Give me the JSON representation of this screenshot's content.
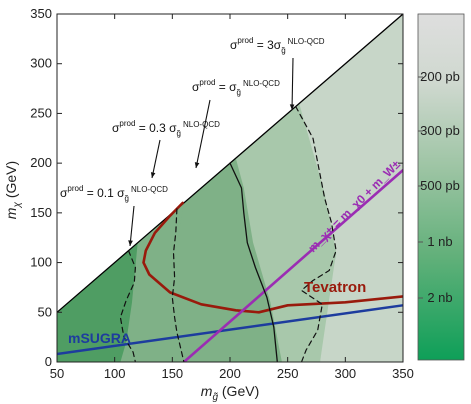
{
  "chart_data": {
    "type": "contour",
    "title": "",
    "xlabel": "m_g̃ (GeV)",
    "ylabel": "m_χ (GeV)",
    "xlim": [
      50,
      350
    ],
    "ylim": [
      0,
      350
    ],
    "x_ticks": [
      50,
      100,
      150,
      200,
      250,
      300,
      350
    ],
    "y_ticks": [
      0,
      50,
      100,
      150,
      200,
      250,
      300,
      350
    ],
    "colorbar": {
      "labels": [
        "200 pb",
        "300 pb",
        "500 pb",
        "1 nb",
        "2 nb"
      ],
      "colors": {
        "low": "#e0e0e0",
        "high": "#11a05a"
      }
    },
    "colors": {
      "kinematic_line": "#000000",
      "tevatron": "#991a0c",
      "msugra": "#1d3c9e",
      "w_line": "#9b2db3",
      "dark_green": "#4f9d63",
      "mid_green": "#7fb187",
      "light_green": "#a8c8ab",
      "pale": "#c7d6c8"
    },
    "series": [
      {
        "name": "m_χ = m_g̃",
        "type": "kinematic_boundary",
        "x": [
          50,
          350
        ],
        "y": [
          50,
          350
        ]
      },
      {
        "name": "Tevatron",
        "x": [
          159,
          148,
          135,
          127,
          125,
          130,
          148,
          175,
          205,
          225,
          250,
          300,
          350
        ],
        "y": [
          160,
          147,
          130,
          112,
          100,
          88,
          70,
          58,
          52,
          50,
          57,
          60,
          66
        ]
      },
      {
        "name": "mSUGRA",
        "x": [
          50,
          350
        ],
        "y": [
          8,
          57
        ]
      },
      {
        "name": "m_χ± = m_χ0 + m_W±",
        "x": [
          160,
          350
        ],
        "y": [
          0,
          193
        ]
      },
      {
        "name": "σ^prod = 0.1 σ_g̃^NLO-QCD",
        "type": "contour_dashed",
        "x": [
          112,
          118,
          117,
          110,
          105,
          108,
          116,
          118
        ],
        "y": [
          112,
          95,
          80,
          62,
          45,
          25,
          10,
          0
        ]
      },
      {
        "name": "σ^prod = 0.3 σ_g̃^NLO-QCD",
        "type": "contour_dashed",
        "x": [
          154,
          153,
          151,
          152,
          150,
          152,
          154,
          157,
          160
        ],
        "y": [
          154,
          130,
          110,
          85,
          65,
          45,
          30,
          15,
          0
        ]
      },
      {
        "name": "σ^prod = σ_g̃^NLO-QCD",
        "type": "contour_solid",
        "x": [
          200,
          210,
          212,
          215,
          222,
          232,
          238,
          241
        ],
        "y": [
          200,
          175,
          150,
          120,
          95,
          65,
          35,
          0
        ]
      },
      {
        "name": "σ^prod = 3σ_g̃^NLO-QCD",
        "type": "contour_dashed",
        "x": [
          257,
          272,
          277,
          282,
          288,
          292,
          286,
          272,
          262,
          280,
          276,
          266,
          262
        ],
        "y": [
          257,
          225,
          195,
          165,
          140,
          112,
          92,
          82,
          72,
          58,
          32,
          12,
          0
        ]
      }
    ],
    "annotations": [
      {
        "text_main": "σ",
        "sup_main": "prod",
        "rest": " = 3σ",
        "sub": "g̃",
        "sup": "NLO-QCD"
      },
      {
        "text_main": "σ",
        "sup_main": "prod",
        "rest": " = σ",
        "sub": "g̃",
        "sup": "NLO-QCD"
      },
      {
        "text_main": "σ",
        "sup_main": "prod",
        "rest": " = 0.3 σ",
        "sub": "g̃",
        "sup": "NLO-QCD"
      },
      {
        "text_main": "σ",
        "sup_main": "prod",
        "rest": " = 0.1 σ",
        "sub": "g̃",
        "sup": "NLO-QCD"
      }
    ],
    "line_labels": {
      "tevatron": "Tevatron",
      "msugra": "mSUGRA",
      "w_line": "m_χ± = m_χ0 + m_W±"
    }
  }
}
